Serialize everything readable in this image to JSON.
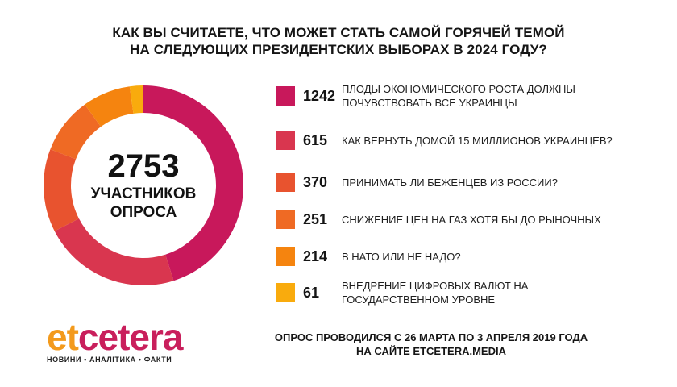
{
  "title": {
    "line1": "КАК ВЫ СЧИТАЕТЕ, ЧТО МОЖЕТ СТАТЬ САМОЙ ГОРЯЧЕЙ ТЕМОЙ",
    "line2": "НА СЛЕДУЮЩИХ ПРЕЗИДЕНТСКИХ ВЫБОРАХ В 2024 ГОДУ?"
  },
  "center": {
    "total": "2753",
    "label_line1": "УЧАСТНИКОВ",
    "label_line2": "ОПРОСА"
  },
  "chart_data": {
    "type": "pie",
    "variant": "donut",
    "title": "КАК ВЫ СЧИТАЕТЕ, ЧТО МОЖЕТ СТАТЬ САМОЙ ГОРЯЧЕЙ ТЕМОЙ НА СЛЕДУЮЩИХ ПРЕЗИДЕНТСКИХ ВЫБОРАХ В 2024 ГОДУ?",
    "total": 2753,
    "start": "top, clockwise",
    "slices": [
      {
        "value": 1242,
        "label_line1": "ПЛОДЫ ЭКОНОМИЧЕСКОГО РОСТА ДОЛЖНЫ",
        "label_line2": "ПОЧУВСТВОВАТЬ ВСЕ УКРАИНЦЫ",
        "color": "#c8185b"
      },
      {
        "value": 615,
        "label_line1": "КАК ВЕРНУТЬ ДОМОЙ 15 МИЛЛИОНОВ УКРАИНЦЕВ?",
        "label_line2": "",
        "color": "#d9364f"
      },
      {
        "value": 370,
        "label_line1": "ПРИНИМАТЬ ЛИ БЕЖЕНЦЕВ ИЗ РОССИИ?",
        "label_line2": "",
        "color": "#e8532f"
      },
      {
        "value": 251,
        "label_line1": "СНИЖЕНИЕ ЦЕН НА ГАЗ ХОТЯ БЫ ДО РЫНОЧНЫХ",
        "label_line2": "",
        "color": "#ef6a24"
      },
      {
        "value": 214,
        "label_line1": "В НАТО ИЛИ НЕ НАДО?",
        "label_line2": "",
        "color": "#f5840f"
      },
      {
        "value": 61,
        "label_line1": "ВНЕДРЕНИЕ ЦИФРОВЫХ ВАЛЮТ НА",
        "label_line2": "ГОСУДАРСТВЕННОМ УРОВНЕ",
        "color": "#f9ab0d"
      }
    ]
  },
  "logo": {
    "part1": "et",
    "part2": "cetera",
    "tagline": "НОВИНИ • АНАЛІТИКА • ФАКТИ",
    "color1": "#f39a1c",
    "color2": "#c91f5c"
  },
  "footer": {
    "line1": "ОПРОС ПРОВОДИЛСЯ С 26 МАРТА ПО 3 АПРЕЛЯ 2019 ГОДА",
    "line2": "НА САЙТЕ ETCETERA.MEDIA"
  }
}
